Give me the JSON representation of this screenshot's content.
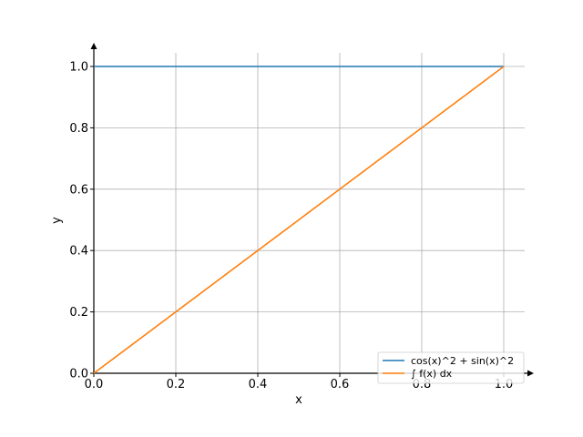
{
  "chart_data": {
    "type": "line",
    "xlabel": "x",
    "ylabel": "y",
    "xlim": [
      0,
      1.05
    ],
    "ylim": [
      0,
      1.05
    ],
    "x_ticks": [
      0.0,
      0.2,
      0.4,
      0.6,
      0.8,
      1.0
    ],
    "y_ticks": [
      0.0,
      0.2,
      0.4,
      0.6,
      0.8,
      1.0
    ],
    "x_tick_labels": [
      "0.0",
      "0.2",
      "0.4",
      "0.6",
      "0.8",
      "1.0"
    ],
    "y_tick_labels": [
      "0.0",
      "0.2",
      "0.4",
      "0.6",
      "0.8",
      "1.0"
    ],
    "grid": true,
    "legend_position": "bottom-right",
    "series": [
      {
        "name": "cos(x)^2 + sin(x)^2",
        "color": "#1f77b4",
        "x": [
          0,
          1
        ],
        "y": [
          1,
          1
        ]
      },
      {
        "name": "∫ f(x) dx",
        "color": "#ff7f0e",
        "x": [
          0,
          1
        ],
        "y": [
          0,
          1
        ]
      }
    ]
  }
}
